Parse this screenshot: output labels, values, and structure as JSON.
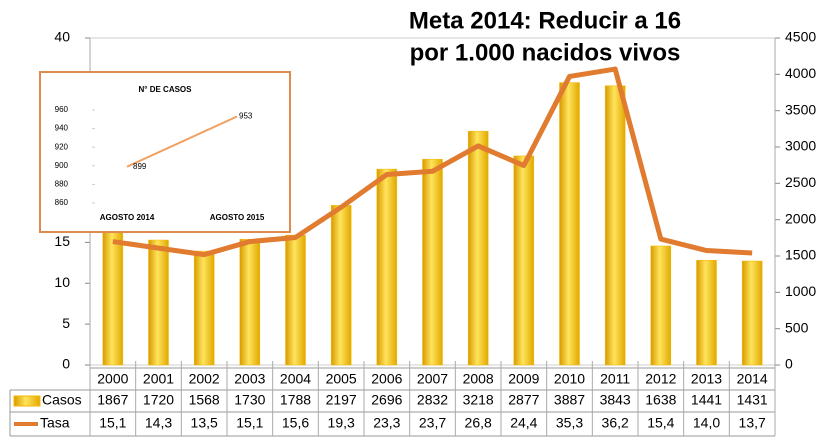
{
  "chart_data": [
    {
      "type": "combo",
      "title": [
        "Meta 2014: Reducir a 16",
        "por 1.000 nacidos vivos"
      ],
      "categories": [
        "2000",
        "2001",
        "2002",
        "2003",
        "2004",
        "2005",
        "2006",
        "2007",
        "2008",
        "2009",
        "2010",
        "2011",
        "2012",
        "2013",
        "2014"
      ],
      "series": [
        {
          "name": "Casos",
          "color": "#f5b800",
          "axis": "y2",
          "values": [
            1867,
            1720,
            1568,
            1730,
            1788,
            2197,
            2696,
            2832,
            3218,
            2877,
            3887,
            3843,
            1638,
            1441,
            1431
          ]
        },
        {
          "name": "Tasa",
          "color": "#e07b30",
          "values": [
            15.1,
            14.3,
            13.5,
            15.1,
            15.6,
            19.3,
            23.3,
            23.7,
            26.8,
            24.4,
            35.3,
            36.2,
            15.4,
            14.0,
            13.7
          ],
          "value_labels": [
            "15,1",
            "14,3",
            "13,5",
            "15,1",
            "15,6",
            "19,3",
            "23,3",
            "23,7",
            "26,8",
            "24,4",
            "35,3",
            "36,2",
            "15,4",
            "14,0",
            "13,7"
          ]
        }
      ],
      "ylim": [
        0,
        40
      ],
      "yticks": [
        0,
        5,
        10,
        15,
        20,
        25,
        30,
        35,
        40
      ],
      "y2lim": [
        0,
        4500
      ],
      "y2ticks": [
        0,
        500,
        1000,
        1500,
        2000,
        2500,
        3000,
        3500,
        4000,
        4500
      ]
    },
    {
      "type": "line",
      "title": "N° DE CASOS",
      "categories": [
        "AGOSTO 2014",
        "AGOSTO 2015"
      ],
      "values": [
        899,
        953
      ],
      "color": "#f0a060",
      "ylim": [
        860,
        960
      ],
      "yticks": [
        860,
        880,
        900,
        920,
        940,
        960
      ]
    }
  ]
}
